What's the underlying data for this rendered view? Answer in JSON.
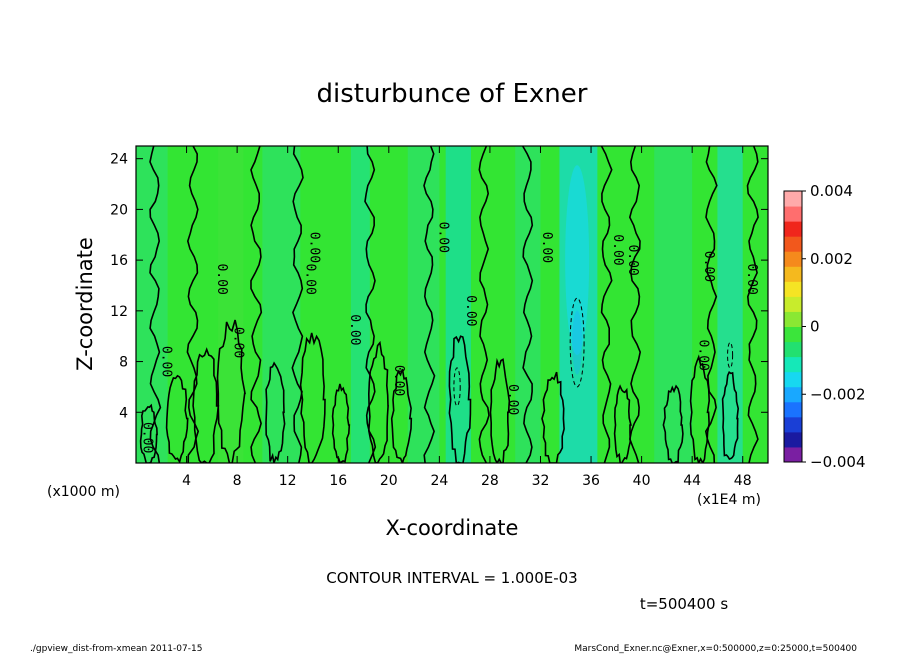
{
  "chart_data": {
    "type": "contour",
    "title": "disturbunce of Exner",
    "xlabel": "X-coordinate",
    "ylabel": "Z-coordinate",
    "x_unit_note": "(x1E4 m)",
    "y_unit_note": "(x1000 m)",
    "xlim": [
      0,
      50
    ],
    "ylim": [
      0,
      25
    ],
    "x_ticks": [
      4,
      8,
      12,
      16,
      20,
      24,
      28,
      32,
      36,
      40,
      44,
      48
    ],
    "y_ticks": [
      4,
      8,
      12,
      16,
      20,
      24
    ],
    "colorbar": {
      "min": -0.004,
      "max": 0.004,
      "tick_values": [
        0.004,
        0.002,
        0,
        -0.002,
        -0.004
      ],
      "tick_labels": [
        "0.004",
        "0.002",
        "0",
        "−0.002",
        "−0.004"
      ],
      "colors": [
        "#7a1fa2",
        "#1a1aa0",
        "#1a3fd6",
        "#1a73ff",
        "#19a8ff",
        "#17d8f0",
        "#15e8b8",
        "#22e070",
        "#3be53b",
        "#8ae833",
        "#c8ec2c",
        "#f5e424",
        "#f5b91e",
        "#f58a1c",
        "#f2581c",
        "#f0261c",
        "#ff6e6e",
        "#ffaaaa"
      ]
    },
    "contour_interval_text": "CONTOUR INTERVAL = 1.000E-03",
    "contour_label": "0.00",
    "contour_label_positions": [
      {
        "x": 0.6,
        "z": 2.0
      },
      {
        "x": 2.1,
        "z": 8.0
      },
      {
        "x": 6.5,
        "z": 14.5
      },
      {
        "x": 7.8,
        "z": 9.5
      },
      {
        "x": 13.5,
        "z": 14.5
      },
      {
        "x": 13.8,
        "z": 17.0
      },
      {
        "x": 17.0,
        "z": 10.5
      },
      {
        "x": 20.5,
        "z": 6.5
      },
      {
        "x": 24.0,
        "z": 17.8
      },
      {
        "x": 26.2,
        "z": 12.0
      },
      {
        "x": 29.5,
        "z": 5.0
      },
      {
        "x": 32.2,
        "z": 17.0
      },
      {
        "x": 37.8,
        "z": 16.8
      },
      {
        "x": 39.0,
        "z": 16.0
      },
      {
        "x": 44.6,
        "z": 8.5
      },
      {
        "x": 45.0,
        "z": 15.5
      },
      {
        "x": 48.4,
        "z": 14.5
      }
    ],
    "time_text": "t=500400 s"
  },
  "footer": {
    "left": "./gpview_dist-from-xmean   2011-07-15",
    "right": "MarsCond_Exner.nc@Exner,x=0:500000,z=0:25000,t=500400"
  }
}
